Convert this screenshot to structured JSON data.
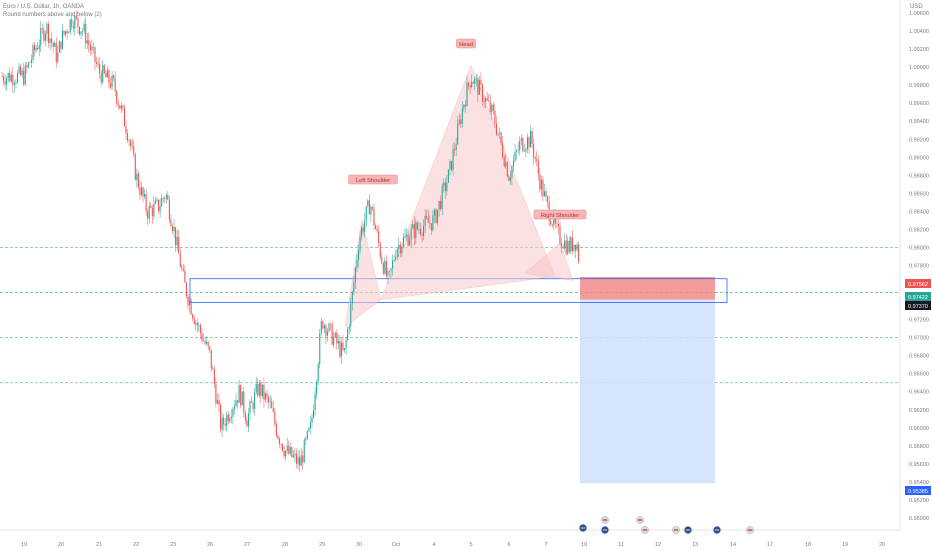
{
  "header": {
    "title": "Euro / U.S. Dollar, 1h, OANDA",
    "subtitle": "Round numbers above and below (2)",
    "currency": "USD"
  },
  "colors": {
    "up": "#26a69a",
    "down": "#ef5350",
    "pattern_fill": "#f8c9c9",
    "pattern_line": "#f4a1a1",
    "target_fill": "#cfe0fb",
    "stop_fill": "#f28b8b",
    "dashed_levels": "#6fbf9a",
    "neckline_box": "#2962ff",
    "badge_red": "#ef5350",
    "badge_green": "#26a69a",
    "badge_blue": "#2962ff",
    "badge_dark": "#131722"
  },
  "labels": {
    "left_shoulder": "Left Shoulder",
    "head": "Head",
    "right_shoulder": "Right Shoulder"
  },
  "chart_data": {
    "type": "candlestick",
    "xlabel": "",
    "ylabel": "",
    "x_ticks": [
      "19",
      "20",
      "21",
      "22",
      "23",
      "26",
      "27",
      "28",
      "29",
      "30",
      "Oct",
      "4",
      "5",
      "6",
      "7",
      "10",
      "11",
      "12",
      "13",
      "14",
      "17",
      "18",
      "19",
      "20"
    ],
    "y_ticks": [
      "1.00600",
      "1.00400",
      "1.00200",
      "1.00000",
      "0.99800",
      "0.99600",
      "0.99400",
      "0.99200",
      "0.99000",
      "0.98800",
      "0.98600",
      "0.98400",
      "0.98200",
      "0.98000",
      "0.97800",
      "0.97600",
      "0.97400",
      "0.97200",
      "0.97000",
      "0.96800",
      "0.96600",
      "0.96400",
      "0.96200",
      "0.96000",
      "0.95800",
      "0.95600",
      "0.95400",
      "0.95200",
      "0.95000"
    ],
    "ylim": [
      0.949,
      1.007
    ],
    "round_levels": [
      0.98,
      0.975,
      0.97,
      0.965
    ],
    "price_badges": [
      {
        "value": "0.97562",
        "style": "red"
      },
      {
        "value": "0.97422",
        "style": "green"
      },
      {
        "value": "0.97370",
        "style": "dark"
      },
      {
        "value": "0.95385",
        "style": "blue"
      }
    ],
    "patterns": {
      "left_shoulder": {
        "date": "29",
        "price": 0.9853
      },
      "head": {
        "date": "5",
        "price": 1.0002
      },
      "right_shoulder": {
        "date": "7",
        "price": 0.9816
      },
      "neckline": [
        0.974,
        0.9762
      ]
    },
    "trade": {
      "entry": 0.97422,
      "stop": 0.97562,
      "target": 0.95385
    },
    "ohlc_path": [
      [
        "19",
        0.999
      ],
      [
        "19.3",
        1.002
      ],
      [
        "19.6",
        1.0045
      ],
      [
        "19.9",
        1.001
      ],
      [
        "20",
        1.003
      ],
      [
        "20.3",
        1.0055
      ],
      [
        "20.6",
        1.004
      ],
      [
        "21",
        0.9995
      ],
      [
        "21.4",
        0.998
      ],
      [
        "21.8",
        0.9925
      ],
      [
        "22",
        0.988
      ],
      [
        "22.3",
        0.984
      ],
      [
        "22.6",
        0.9845
      ],
      [
        "22.8",
        0.986
      ],
      [
        "23",
        0.9825
      ],
      [
        "23.3",
        0.976
      ],
      [
        "23.6",
        0.972
      ],
      [
        "26",
        0.968
      ],
      [
        "26.3",
        0.96
      ],
      [
        "26.6",
        0.9625
      ],
      [
        "26.8",
        0.964
      ],
      [
        "27",
        0.961
      ],
      [
        "27.3",
        0.9645
      ],
      [
        "27.6",
        0.9625
      ],
      [
        "27.8",
        0.9595
      ],
      [
        "28",
        0.9575
      ],
      [
        "28.4",
        0.956
      ],
      [
        "28.7",
        0.96
      ],
      [
        "29",
        0.972
      ],
      [
        "29.3",
        0.97
      ],
      [
        "29.6",
        0.968
      ],
      [
        "29.8",
        0.974
      ],
      [
        "30",
        0.981
      ],
      [
        "30.3",
        0.985
      ],
      [
        "30.6",
        0.979
      ],
      [
        "30.8",
        0.976
      ],
      [
        "Oct",
        0.98
      ],
      [
        "Oct.5",
        0.982
      ],
      [
        "4",
        0.983
      ],
      [
        "4.4",
        0.988
      ],
      [
        "4.8",
        0.996
      ],
      [
        "5",
        0.999
      ],
      [
        "5.3",
        0.997
      ],
      [
        "5.6",
        0.9945
      ],
      [
        "6",
        0.988
      ],
      [
        "6.3",
        0.9915
      ],
      [
        "6.6",
        0.992
      ],
      [
        "6.8",
        0.988
      ],
      [
        "7",
        0.985
      ],
      [
        "7.3",
        0.9815
      ],
      [
        "7.6",
        0.98
      ],
      [
        "7.8",
        0.9808
      ],
      [
        "10",
        0.9745
      ],
      [
        "10.1",
        0.9742
      ]
    ]
  },
  "event_icons": [
    "eu-flag-icon",
    "us-flag-icon",
    "eu-flag-icon",
    "us-flag-icon",
    "us-flag-icon",
    "us-flag-icon",
    "eu-flag-icon"
  ]
}
